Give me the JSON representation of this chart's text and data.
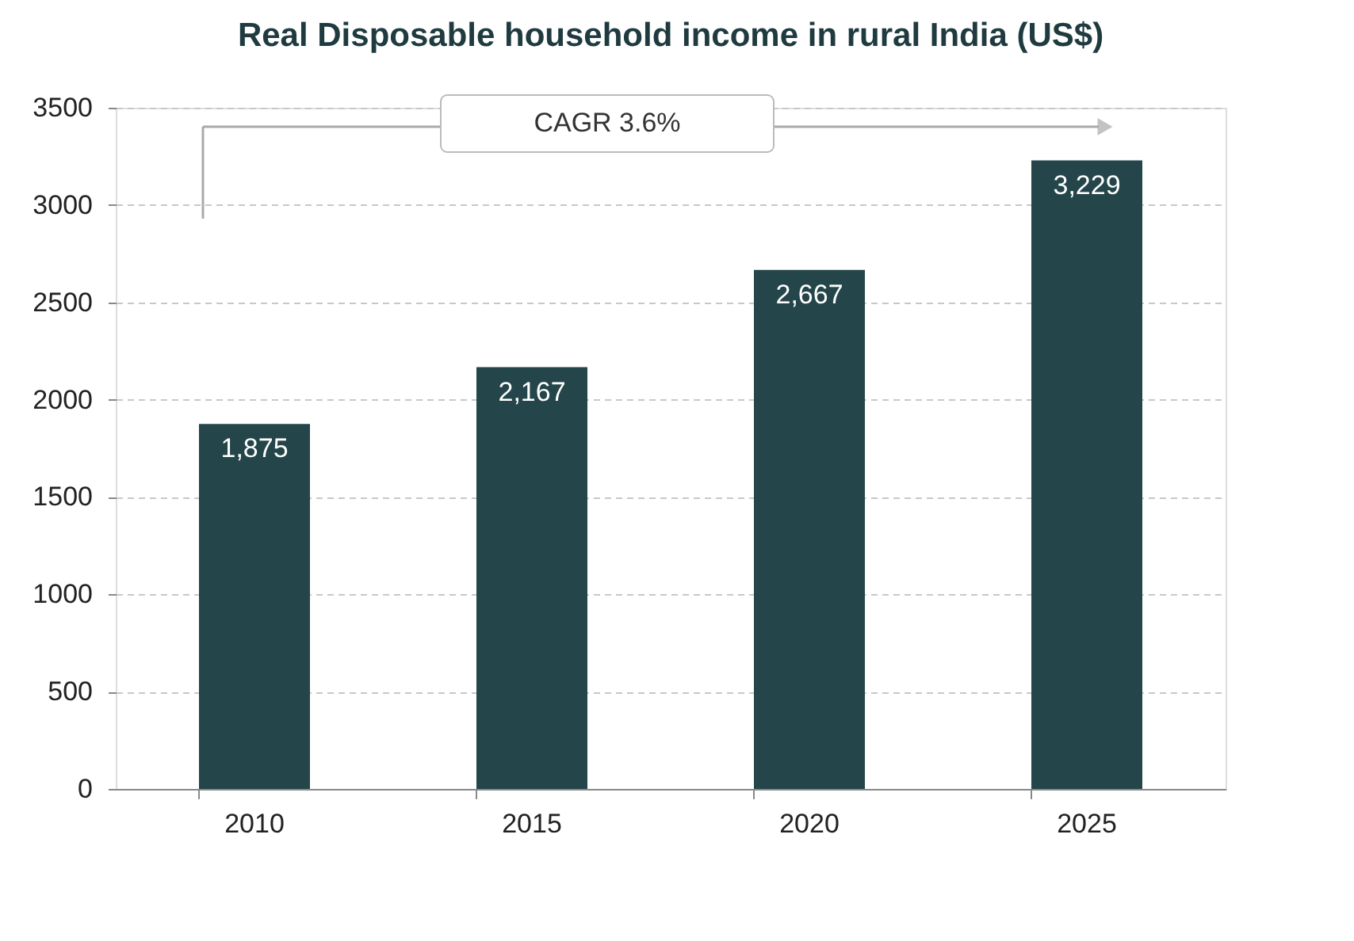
{
  "chart_data": {
    "type": "bar",
    "title": "Real Disposable household income in rural India (US$)",
    "categories": [
      "2010",
      "2015",
      "2020",
      "2025"
    ],
    "values": [
      1875,
      2167,
      2667,
      3229
    ],
    "value_labels": [
      "1,875",
      "2,167",
      "2,667",
      "3,229"
    ],
    "color": "#24454a",
    "ylim": [
      0,
      3500
    ],
    "yticks": [
      0,
      500,
      1000,
      1500,
      2000,
      2500,
      3000,
      3500
    ],
    "grid": "y",
    "annotations": [
      "CAGR 3.6%"
    ]
  }
}
